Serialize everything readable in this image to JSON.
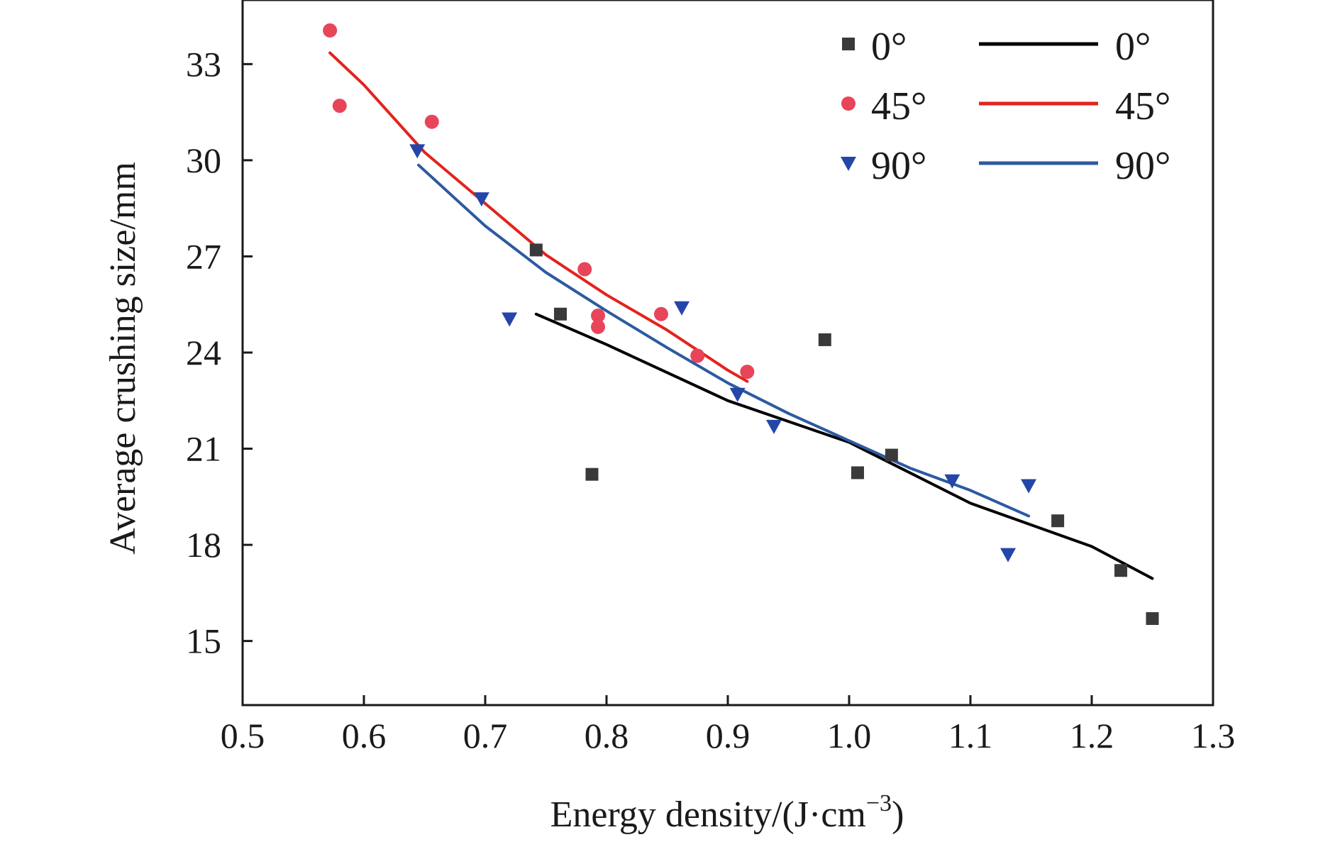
{
  "chart_data": {
    "type": "scatter",
    "title": "",
    "xlabel": "Energy density/(J·cm",
    "xlabel_sup": "−3",
    "xlabel_end": ")",
    "ylabel": "Average crushing size/mm",
    "xlim": [
      0.5,
      1.3
    ],
    "ylim": [
      13,
      35
    ],
    "xticks": [
      "0.5",
      "0.6",
      "0.7",
      "0.8",
      "0.9",
      "1.0",
      "1.1",
      "1.2",
      "1.3"
    ],
    "yticks": [
      "15",
      "18",
      "21",
      "24",
      "27",
      "30",
      "33"
    ],
    "grid": false,
    "legend_position": "top-right",
    "series": [
      {
        "name": "0°",
        "marker": "square",
        "color": "#3a3a3a",
        "points": [
          [
            0.742,
            27.2
          ],
          [
            0.762,
            25.2
          ],
          [
            0.788,
            20.2
          ],
          [
            0.98,
            24.4
          ],
          [
            1.007,
            20.25
          ],
          [
            1.035,
            20.8
          ],
          [
            1.172,
            18.75
          ],
          [
            1.224,
            17.2
          ],
          [
            1.25,
            15.7
          ]
        ]
      },
      {
        "name": "45°",
        "marker": "circle",
        "color": "#e8455a",
        "points": [
          [
            0.572,
            34.05
          ],
          [
            0.58,
            31.7
          ],
          [
            0.656,
            31.2
          ],
          [
            0.782,
            26.6
          ],
          [
            0.793,
            25.15
          ],
          [
            0.793,
            24.8
          ],
          [
            0.845,
            25.2
          ],
          [
            0.875,
            23.9
          ],
          [
            0.916,
            23.4
          ]
        ]
      },
      {
        "name": "90°",
        "marker": "triangle-down",
        "color": "#2346a8",
        "points": [
          [
            0.644,
            30.3
          ],
          [
            0.697,
            28.8
          ],
          [
            0.72,
            25.05
          ],
          [
            0.862,
            25.4
          ],
          [
            0.908,
            22.7
          ],
          [
            0.938,
            21.7
          ],
          [
            1.085,
            20.0
          ],
          [
            1.131,
            17.7
          ],
          [
            1.148,
            19.85
          ]
        ]
      }
    ],
    "fits": [
      {
        "name": "0°",
        "color": "#000000",
        "points": [
          [
            0.742,
            25.2
          ],
          [
            0.8,
            24.25
          ],
          [
            0.9,
            22.5
          ],
          [
            1.0,
            21.2
          ],
          [
            1.1,
            19.3
          ],
          [
            1.2,
            17.95
          ],
          [
            1.25,
            16.95
          ]
        ]
      },
      {
        "name": "45°",
        "color": "#e3231c",
        "points": [
          [
            0.572,
            33.35
          ],
          [
            0.6,
            32.35
          ],
          [
            0.65,
            30.25
          ],
          [
            0.7,
            28.65
          ],
          [
            0.75,
            27.05
          ],
          [
            0.8,
            25.8
          ],
          [
            0.85,
            24.7
          ],
          [
            0.9,
            23.45
          ],
          [
            0.916,
            23.1
          ]
        ]
      },
      {
        "name": "90°",
        "color": "#2c5aa0",
        "points": [
          [
            0.645,
            29.85
          ],
          [
            0.7,
            27.95
          ],
          [
            0.75,
            26.5
          ],
          [
            0.8,
            25.3
          ],
          [
            0.85,
            24.15
          ],
          [
            0.9,
            23.05
          ],
          [
            0.95,
            22.1
          ],
          [
            1.0,
            21.25
          ],
          [
            1.05,
            20.4
          ],
          [
            1.1,
            19.7
          ],
          [
            1.148,
            18.9
          ]
        ]
      }
    ]
  }
}
